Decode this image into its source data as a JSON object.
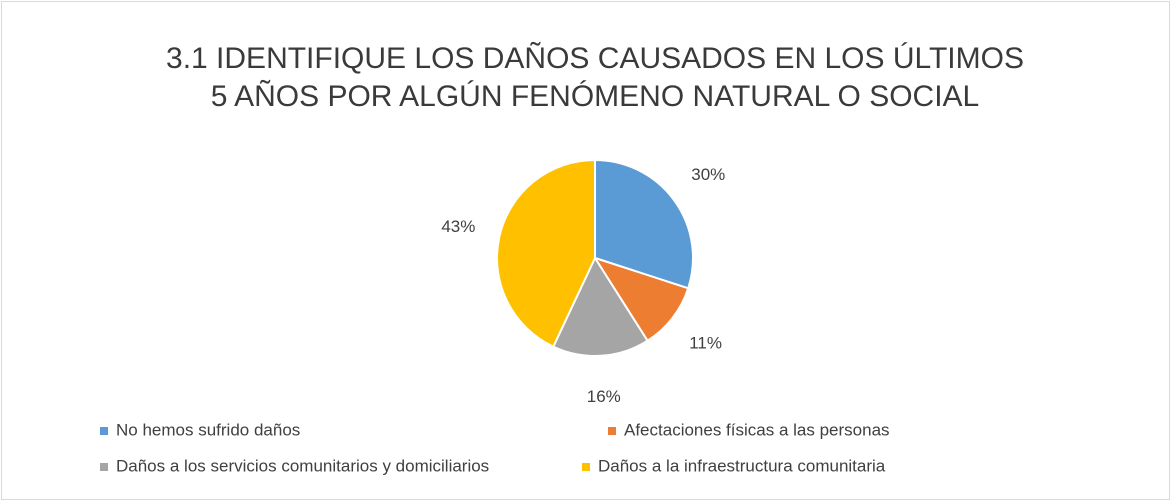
{
  "chart_data": {
    "type": "pie",
    "title": [
      "3.1 IDENTIFIQUE LOS DAÑOS CAUSADOS EN LOS ÚLTIMOS",
      "5 AÑOS POR ALGÚN FENÓMENO NATURAL O SOCIAL"
    ],
    "categories": [
      "No hemos sufrido daños",
      "Afectaciones físicas a las personas",
      "Daños a los servicios comunitarios y domiciliarios",
      "Daños a la infraestructura comunitaria"
    ],
    "values": [
      30,
      11,
      16,
      43
    ],
    "value_labels": [
      "30%",
      "11%",
      "16%",
      "43%"
    ],
    "colors": [
      "#5b9bd5",
      "#ed7d31",
      "#a5a5a5",
      "#ffc000"
    ],
    "legend": "bottom"
  }
}
